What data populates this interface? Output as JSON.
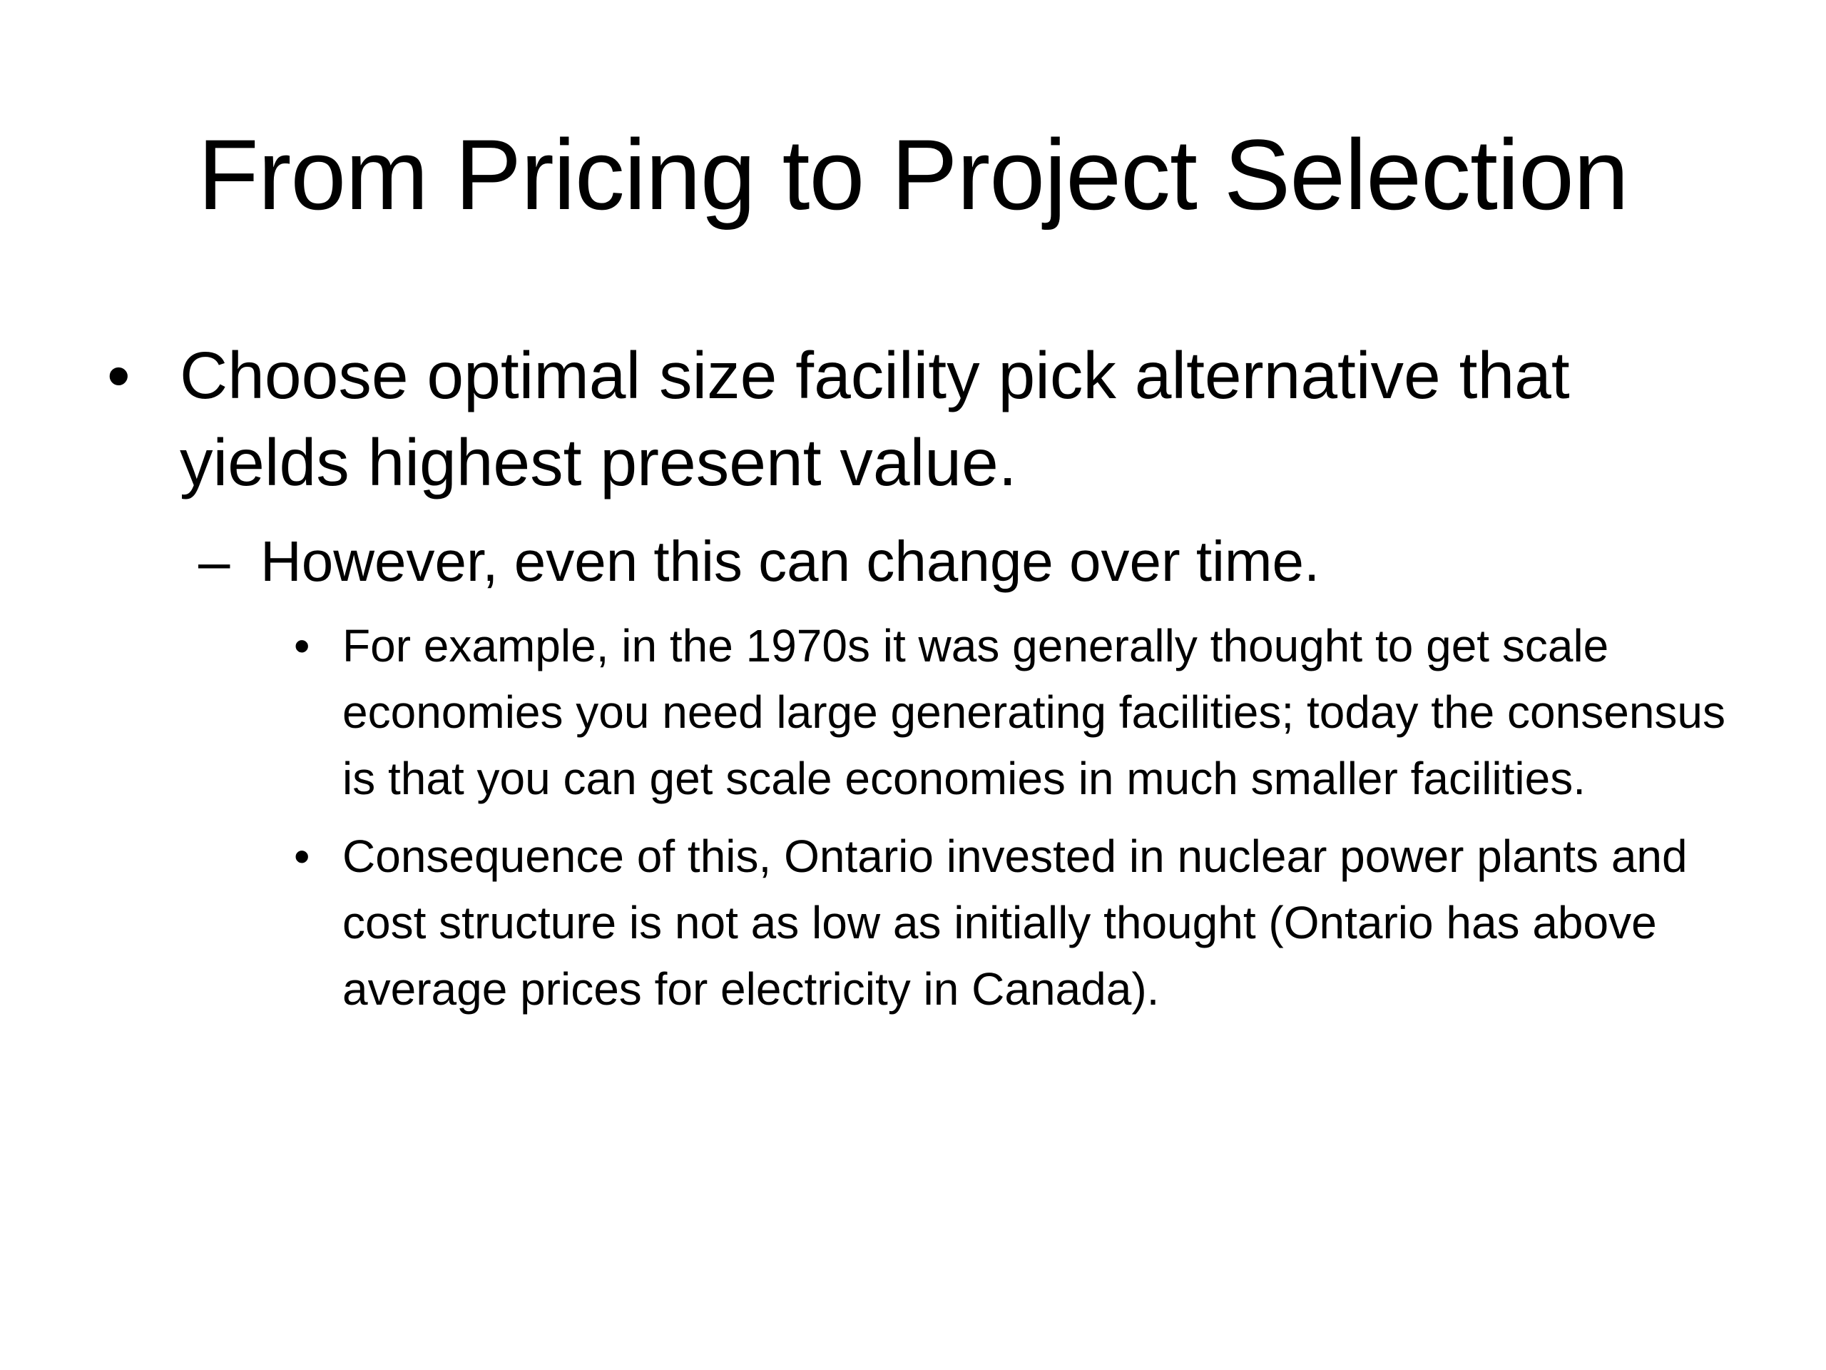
{
  "slide": {
    "title": "From Pricing to Project Selection",
    "bullet_symbol": "•",
    "dash_symbol": "–",
    "point1": {
      "text": "Choose optimal size facility pick alternative that yields highest present value.",
      "sub": {
        "text": "However, even this can change over time.",
        "items": [
          {
            "text": "For example, in the 1970s it was generally thought to get scale economies you need large generating facilities; today the consensus is that you can get scale economies in much smaller facilities."
          },
          {
            "text": "Consequence of this, Ontario invested in nuclear power plants and cost structure is not as low as initially thought (Ontario has above average prices for electricity in Canada)."
          }
        ]
      }
    }
  }
}
